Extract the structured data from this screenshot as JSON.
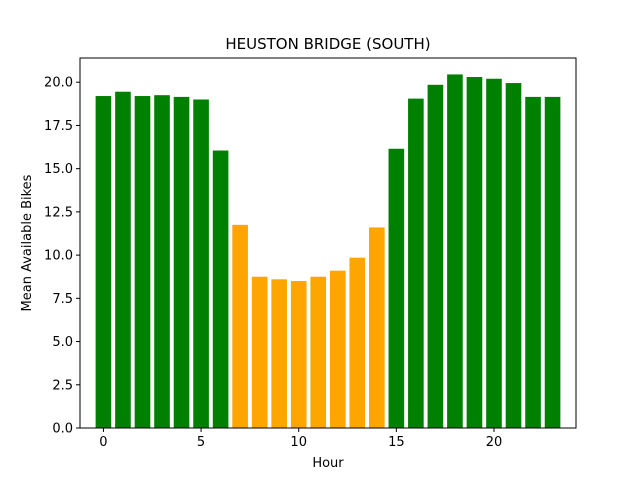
{
  "chart_data": {
    "type": "bar",
    "title": "HEUSTON BRIDGE (SOUTH)",
    "xlabel": "Hour",
    "ylabel": "Mean Available Bikes",
    "categories": [
      0,
      1,
      2,
      3,
      4,
      5,
      6,
      7,
      8,
      9,
      10,
      11,
      12,
      13,
      14,
      15,
      16,
      17,
      18,
      19,
      20,
      21,
      22,
      23
    ],
    "values": [
      19.2,
      19.45,
      19.2,
      19.25,
      19.15,
      19.0,
      16.05,
      11.75,
      8.75,
      8.6,
      8.5,
      8.75,
      9.1,
      9.85,
      11.6,
      16.15,
      19.05,
      19.85,
      20.45,
      20.3,
      20.2,
      19.95,
      19.15,
      19.15
    ],
    "bar_colors": [
      "#008000",
      "#008000",
      "#008000",
      "#008000",
      "#008000",
      "#008000",
      "#008000",
      "#ffa500",
      "#ffa500",
      "#ffa500",
      "#ffa500",
      "#ffa500",
      "#ffa500",
      "#ffa500",
      "#ffa500",
      "#008000",
      "#008000",
      "#008000",
      "#008000",
      "#008000",
      "#008000",
      "#008000",
      "#008000",
      "#008000"
    ],
    "xlim": [
      -1.2,
      24.2
    ],
    "ylim": [
      0,
      21.4
    ],
    "xticks": [
      0,
      5,
      10,
      15,
      20
    ],
    "yticks": [
      0.0,
      2.5,
      5.0,
      7.5,
      10.0,
      12.5,
      15.0,
      17.5,
      20.0
    ],
    "ytick_labels": [
      "0.0",
      "2.5",
      "5.0",
      "7.5",
      "10.0",
      "12.5",
      "15.0",
      "17.5",
      "20.0"
    ],
    "grid": false,
    "legend": "none"
  }
}
